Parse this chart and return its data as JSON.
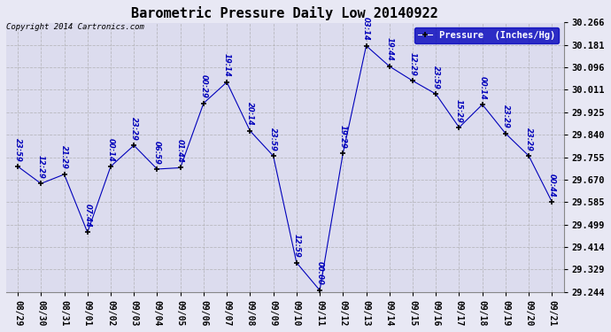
{
  "title": "Barometric Pressure Daily Low 20140922",
  "copyright_text": "Copyright 2014 Cartronics.com",
  "legend_label": "Pressure  (Inches/Hg)",
  "x_labels": [
    "08/29",
    "08/30",
    "08/31",
    "09/01",
    "09/02",
    "09/03",
    "09/04",
    "09/05",
    "09/06",
    "09/07",
    "09/08",
    "09/09",
    "09/10",
    "09/11",
    "09/12",
    "09/13",
    "09/14",
    "09/15",
    "09/16",
    "09/17",
    "09/18",
    "09/19",
    "09/20",
    "09/21"
  ],
  "y_values": [
    29.72,
    29.655,
    29.69,
    29.47,
    29.72,
    29.8,
    29.71,
    29.715,
    29.96,
    30.04,
    29.855,
    29.76,
    29.355,
    29.25,
    29.77,
    30.178,
    30.1,
    30.045,
    29.995,
    29.868,
    29.955,
    29.845,
    29.76,
    29.585
  ],
  "point_labels": [
    "23:59",
    "12:29",
    "21:29",
    "07:44",
    "00:14",
    "23:29",
    "06:59",
    "01:44",
    "00:29",
    "19:14",
    "20:14",
    "23:59",
    "12:59",
    "00:00",
    "19:29",
    "03:14",
    "19:44",
    "12:29",
    "23:59",
    "15:29",
    "00:14",
    "23:29",
    "23:29",
    "00:44"
  ],
  "ylim": [
    29.244,
    30.266
  ],
  "yticks": [
    29.244,
    29.329,
    29.414,
    29.499,
    29.585,
    29.67,
    29.755,
    29.84,
    29.925,
    30.011,
    30.096,
    30.181,
    30.266
  ],
  "line_color": "#0000bb",
  "marker_color": "#000000",
  "bg_color": "#e8e8f4",
  "plot_bg_color": "#dcdcee",
  "grid_color": "#aaaaaa",
  "title_color": "#000000",
  "legend_bg": "#0000bb",
  "legend_text_color": "#ffffff",
  "figwidth": 6.9,
  "figheight": 3.75,
  "dpi": 100
}
